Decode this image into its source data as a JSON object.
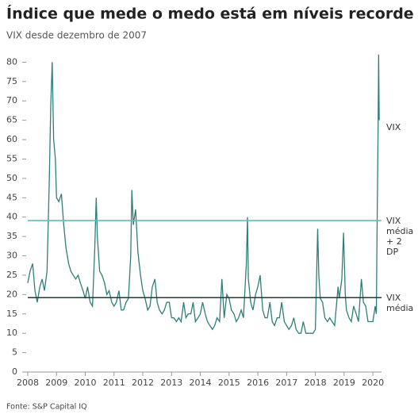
{
  "chart_data": {
    "type": "line",
    "title": "Índice que mede o medo está em níveis recorde",
    "subtitle": "VIX desde dezembro de 2007",
    "source": "Fonte: S&P Capital IQ",
    "x": [
      2008.0,
      2008.08,
      2008.17,
      2008.25,
      2008.33,
      2008.42,
      2008.5,
      2008.58,
      2008.67,
      2008.75,
      2008.8,
      2008.85,
      2008.9,
      2008.96,
      2009.0,
      2009.08,
      2009.17,
      2009.25,
      2009.33,
      2009.42,
      2009.5,
      2009.58,
      2009.67,
      2009.75,
      2009.83,
      2009.92,
      2010.0,
      2010.08,
      2010.17,
      2010.25,
      2010.33,
      2010.38,
      2010.42,
      2010.5,
      2010.58,
      2010.67,
      2010.75,
      2010.83,
      2010.92,
      2011.0,
      2011.08,
      2011.17,
      2011.25,
      2011.33,
      2011.42,
      2011.5,
      2011.58,
      2011.62,
      2011.67,
      2011.75,
      2011.83,
      2011.92,
      2012.0,
      2012.08,
      2012.17,
      2012.25,
      2012.33,
      2012.42,
      2012.5,
      2012.58,
      2012.67,
      2012.75,
      2012.83,
      2012.92,
      2013.0,
      2013.08,
      2013.17,
      2013.25,
      2013.33,
      2013.42,
      2013.5,
      2013.58,
      2013.67,
      2013.75,
      2013.83,
      2013.92,
      2014.0,
      2014.08,
      2014.17,
      2014.25,
      2014.33,
      2014.42,
      2014.5,
      2014.58,
      2014.67,
      2014.75,
      2014.83,
      2014.92,
      2015.0,
      2015.08,
      2015.17,
      2015.25,
      2015.33,
      2015.42,
      2015.5,
      2015.6,
      2015.64,
      2015.67,
      2015.75,
      2015.83,
      2015.92,
      2016.0,
      2016.08,
      2016.17,
      2016.25,
      2016.33,
      2016.42,
      2016.5,
      2016.58,
      2016.67,
      2016.75,
      2016.83,
      2016.92,
      2017.0,
      2017.08,
      2017.17,
      2017.25,
      2017.33,
      2017.42,
      2017.5,
      2017.58,
      2017.67,
      2017.75,
      2017.83,
      2017.92,
      2018.0,
      2018.08,
      2018.12,
      2018.17,
      2018.25,
      2018.33,
      2018.42,
      2018.5,
      2018.58,
      2018.67,
      2018.79,
      2018.83,
      2018.92,
      2018.98,
      2019.04,
      2019.08,
      2019.17,
      2019.25,
      2019.33,
      2019.42,
      2019.5,
      2019.6,
      2019.67,
      2019.75,
      2019.83,
      2019.92,
      2020.0,
      2020.08,
      2020.12,
      2020.15,
      2020.18,
      2020.2,
      2020.22
    ],
    "series": [
      {
        "name": "VIX",
        "color": "#2e7f7a",
        "values": [
          23,
          26,
          28,
          21,
          18,
          22,
          24,
          21,
          26,
          50,
          69,
          80,
          60,
          55,
          45,
          44,
          46,
          38,
          32,
          28,
          26,
          25,
          24,
          25,
          23,
          21,
          19,
          22,
          18,
          17,
          32,
          45,
          35,
          26,
          25,
          23,
          20,
          21,
          18,
          17,
          18,
          21,
          16,
          16,
          18,
          19,
          30,
          47,
          38,
          42,
          31,
          25,
          21,
          19,
          16,
          17,
          22,
          24,
          18,
          16,
          15,
          16,
          18,
          18,
          14,
          14,
          13,
          14,
          13,
          18,
          14,
          15,
          15,
          18,
          13,
          14,
          15,
          18,
          15,
          13,
          12,
          11,
          12,
          14,
          13,
          24,
          14,
          20,
          19,
          16,
          15,
          13,
          14,
          16,
          14,
          28,
          40,
          24,
          18,
          16,
          20,
          22,
          25,
          16,
          14,
          14,
          18,
          13,
          12,
          14,
          14,
          18,
          13,
          12,
          11,
          12,
          14,
          11,
          10,
          10,
          13,
          10,
          10,
          10,
          10,
          11,
          37,
          25,
          19,
          18,
          14,
          13,
          14,
          13,
          12,
          22,
          19,
          24,
          36,
          20,
          16,
          14,
          13,
          17,
          15,
          13,
          24,
          18,
          17,
          13,
          13,
          13,
          17,
          15,
          40,
          62,
          82,
          65
        ]
      }
    ],
    "reference_lines": [
      {
        "label": "VIX média + 2 DP",
        "value": 39.1,
        "color": "#6bbab6"
      },
      {
        "label": "VIX média",
        "value": 19.2,
        "color": "#1c3d36"
      }
    ],
    "xlim": [
      2008,
      2020.3
    ],
    "xticks": [
      2008,
      2009,
      2010,
      2011,
      2012,
      2013,
      2014,
      2015,
      2016,
      2017,
      2018,
      2019,
      2020
    ],
    "ylim": [
      0,
      85
    ],
    "yticks": [
      0,
      5,
      10,
      15,
      20,
      25,
      30,
      35,
      40,
      45,
      50,
      55,
      60,
      65,
      70,
      75,
      80
    ]
  }
}
